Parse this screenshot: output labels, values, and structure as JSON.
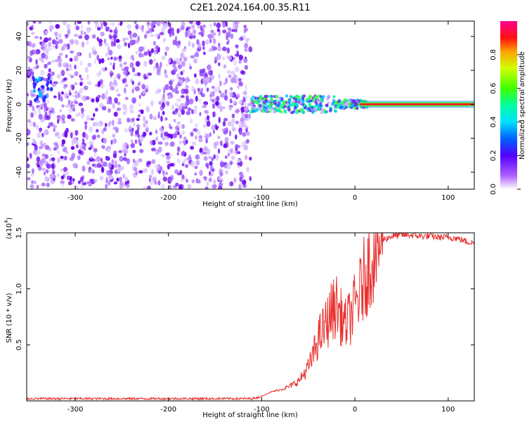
{
  "title": "C2E1.2024.164.00.35.R11",
  "chart_data": [
    {
      "type": "heatmap",
      "panel": "spectrogram",
      "xlabel": "Height of straight line (km)",
      "ylabel": "Frequency (Hz)",
      "xlim": [
        -352,
        128
      ],
      "ylim": [
        -50,
        49
      ],
      "x_ticks": [
        -300,
        -200,
        -100,
        0,
        100
      ],
      "y_ticks": [
        -40,
        -20,
        0,
        20,
        40
      ],
      "colorbar": {
        "label": "Normalized spectral amplitude",
        "ticks": [
          0.0,
          0.2,
          0.4,
          0.6,
          0.8
        ],
        "range": [
          0.0,
          1.0
        ],
        "colormap": "rainbow"
      },
      "description_points": {
        "noise_region_x": [
          -352,
          -112
        ],
        "tone_region_x": [
          -112,
          128
        ],
        "tone_frequency_hz": 0
      }
    },
    {
      "type": "line",
      "panel": "snr",
      "xlabel": "Height of straight line (km)",
      "ylabel": "SNR (10 * v/v)",
      "y_multiplier_label": "(x10",
      "y_multiplier_exp": "4",
      "xlim": [
        -352,
        128
      ],
      "ylim": [
        0,
        1.5
      ],
      "x_ticks": [
        -300,
        -200,
        -100,
        0,
        100
      ],
      "y_ticks": [
        0.5,
        1.0,
        1.5
      ],
      "line_color": "#e8302e",
      "series": [
        {
          "x": [
            -352,
            -300,
            -250,
            -200,
            -150,
            -110,
            -100,
            -90,
            -80,
            -70,
            -60,
            -50,
            -45,
            -40,
            -35,
            -30,
            -25,
            -20,
            -15,
            -10,
            -5,
            0,
            5,
            10,
            15,
            20,
            25,
            30,
            40,
            50,
            60,
            70,
            80,
            90,
            100,
            110,
            120,
            128
          ],
          "values": [
            0.02,
            0.02,
            0.02,
            0.02,
            0.02,
            0.02,
            0.04,
            0.08,
            0.1,
            0.13,
            0.18,
            0.3,
            0.4,
            0.55,
            0.62,
            0.7,
            0.8,
            0.85,
            0.75,
            0.68,
            0.75,
            0.85,
            0.95,
            1.1,
            1.2,
            1.32,
            1.4,
            1.44,
            1.47,
            1.48,
            1.48,
            1.47,
            1.47,
            1.46,
            1.46,
            1.45,
            1.42,
            1.41
          ]
        }
      ]
    }
  ],
  "colors": {
    "noise": "#6a00e8",
    "tone_center": "#ff2020",
    "line": "#e8302e"
  }
}
